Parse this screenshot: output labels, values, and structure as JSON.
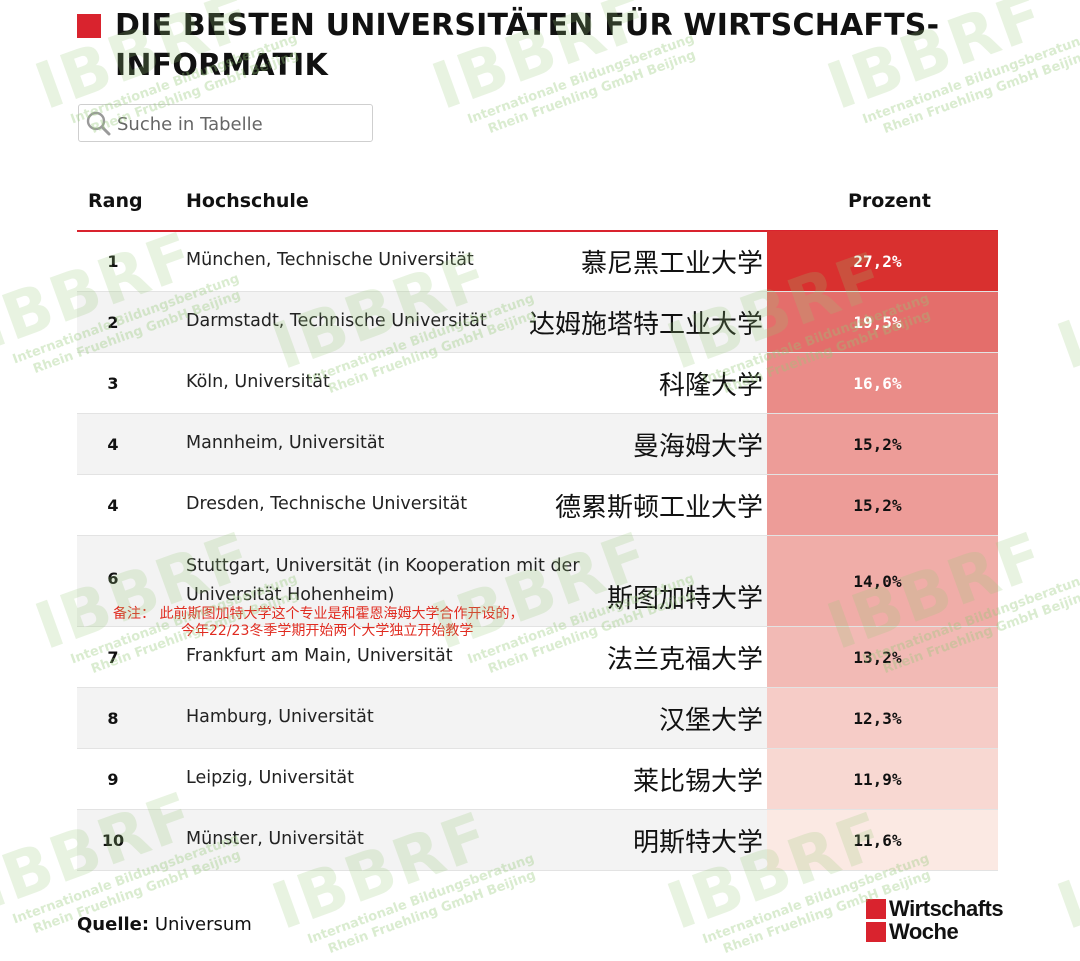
{
  "title": "DIE BESTEN UNIVERSITÄTEN FÜR WIRTSCHAFTS-INFORMATIK",
  "search": {
    "placeholder": "Suche in Tabelle",
    "value": ""
  },
  "table": {
    "headers": {
      "rank": "Rang",
      "school": "Hochschule",
      "percent": "Prozent"
    },
    "rows": [
      {
        "rank": "1",
        "school": "München, Technische Universität",
        "cn": "慕尼黑工业大学",
        "percent": "27,2%",
        "value": 27.2
      },
      {
        "rank": "2",
        "school": "Darmstadt, Technische Universität",
        "cn": "达姆施塔特工业大学",
        "percent": "19,5%",
        "value": 19.5
      },
      {
        "rank": "3",
        "school": "Köln, Universität",
        "cn": "科隆大学",
        "percent": "16,6%",
        "value": 16.6
      },
      {
        "rank": "4",
        "school": "Mannheim, Universität",
        "cn": "曼海姆大学",
        "percent": "15,2%",
        "value": 15.2
      },
      {
        "rank": "4",
        "school": "Dresden, Technische Universität",
        "cn": "德累斯顿工业大学",
        "percent": "15,2%",
        "value": 15.2
      },
      {
        "rank": "6",
        "school": "Stuttgart, Universität (in Kooperation mit der Universität Hohenheim)",
        "cn": "斯图加特大学",
        "percent": "14,0%",
        "value": 14.0
      },
      {
        "rank": "7",
        "school": "Frankfurt am Main, Universität",
        "cn": "法兰克福大学",
        "percent": "13,2%",
        "value": 13.2
      },
      {
        "rank": "8",
        "school": "Hamburg, Universität",
        "cn": "汉堡大学",
        "percent": "12,3%",
        "value": 12.3
      },
      {
        "rank": "9",
        "school": "Leipzig, Universität",
        "cn": "莱比锡大学",
        "percent": "11,9%",
        "value": 11.9
      },
      {
        "rank": "10",
        "school": "Münster, Universität",
        "cn": "明斯特大学",
        "percent": "11,6%",
        "value": 11.6
      }
    ]
  },
  "note": {
    "line1": "备注：  此前斯图加特大学这个专业是和霍恩海姆大学合作开设的，",
    "line2": "今年22/23冬季学期开始两个大学独立开始教学"
  },
  "source": {
    "label": "Quelle:",
    "value": "Universum"
  },
  "logo": {
    "line1": "Wirtschafts",
    "line2": "Woche"
  },
  "watermark": {
    "big": "IBBRF",
    "line1": "Internationale Bildungsberatung",
    "line2": "Rhein Fruehling GmbH Beijing"
  },
  "colors": {
    "accent": "#d9232e",
    "heat_high": "#d9302f",
    "heat_low": "#fbe9e3"
  }
}
